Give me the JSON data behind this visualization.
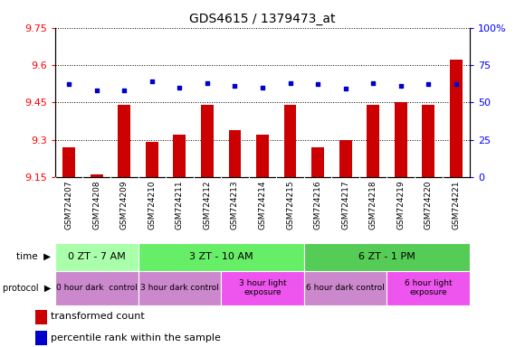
{
  "title": "GDS4615 / 1379473_at",
  "categories": [
    "GSM724207",
    "GSM724208",
    "GSM724209",
    "GSM724210",
    "GSM724211",
    "GSM724212",
    "GSM724213",
    "GSM724214",
    "GSM724215",
    "GSM724216",
    "GSM724217",
    "GSM724218",
    "GSM724219",
    "GSM724220",
    "GSM724221"
  ],
  "bar_values": [
    9.27,
    9.16,
    9.44,
    9.29,
    9.32,
    9.44,
    9.34,
    9.32,
    9.44,
    9.27,
    9.3,
    9.44,
    9.45,
    9.44,
    9.62
  ],
  "dot_values": [
    62,
    58,
    58,
    64,
    60,
    63,
    61,
    60,
    63,
    62,
    59,
    63,
    61,
    62,
    62
  ],
  "ymin": 9.15,
  "ymax": 9.75,
  "y2min": 0,
  "y2max": 100,
  "yticks": [
    9.15,
    9.3,
    9.45,
    9.6,
    9.75
  ],
  "y2ticks": [
    0,
    25,
    50,
    75,
    100
  ],
  "bar_color": "#cc0000",
  "dot_color": "#0000cc",
  "time_groups": [
    {
      "label": "0 ZT - 7 AM",
      "start": 0,
      "end": 3,
      "color": "#aaffaa"
    },
    {
      "label": "3 ZT - 10 AM",
      "start": 3,
      "end": 9,
      "color": "#66ee66"
    },
    {
      "label": "6 ZT - 1 PM",
      "start": 9,
      "end": 15,
      "color": "#55cc55"
    }
  ],
  "protocol_groups": [
    {
      "label": "0 hour dark  control",
      "start": 0,
      "end": 3,
      "color": "#cc88cc"
    },
    {
      "label": "3 hour dark control",
      "start": 3,
      "end": 6,
      "color": "#cc88cc"
    },
    {
      "label": "3 hour light\nexposure",
      "start": 6,
      "end": 9,
      "color": "#ee55ee"
    },
    {
      "label": "6 hour dark control",
      "start": 9,
      "end": 12,
      "color": "#cc88cc"
    },
    {
      "label": "6 hour light\nexposure",
      "start": 12,
      "end": 15,
      "color": "#ee55ee"
    }
  ],
  "legend_items": [
    {
      "label": "transformed count",
      "color": "#cc0000"
    },
    {
      "label": "percentile rank within the sample",
      "color": "#0000cc"
    }
  ],
  "xtick_bg": "#d8d8d8",
  "chart_bg": "#ffffff"
}
